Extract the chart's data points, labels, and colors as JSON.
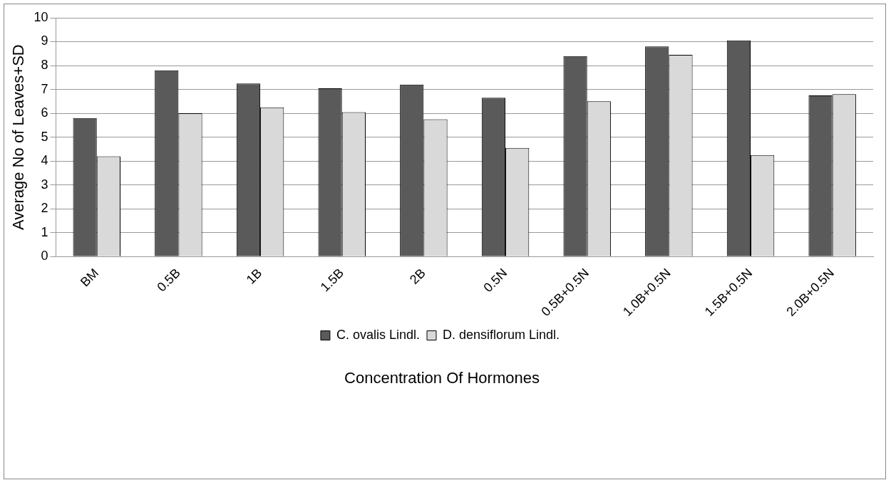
{
  "chart_data": {
    "type": "bar",
    "xlabel": "Concentration Of Hormones",
    "ylabel": "Average No of Leaves+SD",
    "categories": [
      "BM",
      "0.5B",
      "1B",
      "1.5B",
      "2B",
      "0.5N",
      "0.5B+0.5N",
      "1.0B+0.5N",
      "1.5B+0.5N",
      "2.0B+0.5N"
    ],
    "series": [
      {
        "name": "C. ovalis Lindl.",
        "color": "#5a5a5a",
        "values": [
          5.8,
          7.8,
          7.25,
          7.05,
          7.2,
          6.65,
          8.4,
          8.8,
          9.05,
          6.75
        ]
      },
      {
        "name": "D. densiflorum Lindl.",
        "color": "#d9d9d9",
        "values": [
          4.2,
          6.0,
          6.25,
          6.05,
          5.75,
          4.55,
          6.5,
          8.45,
          4.25,
          6.8
        ]
      }
    ],
    "ylim": [
      0,
      10
    ],
    "yticks": [
      0,
      1,
      2,
      3,
      4,
      5,
      6,
      7,
      8,
      9,
      10
    ],
    "grid": "y",
    "legend": "bottom"
  }
}
